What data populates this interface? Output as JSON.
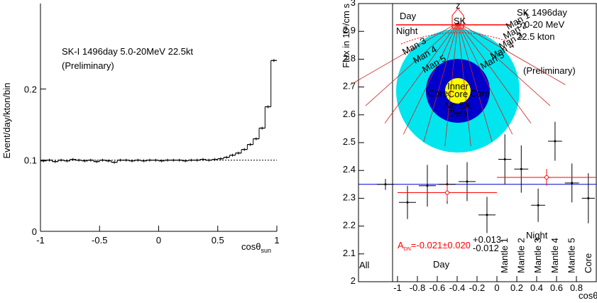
{
  "chart_data": [
    {
      "type": "histogram",
      "text": "SK-I 1496day  5.0-20MeV  22.5kt",
      "subtitle": "(Preliminary)",
      "y_label": "Event/day/kton/bin",
      "x_label": "cosθ",
      "x_label_sub": "sun",
      "bins": [
        -1,
        -0.95,
        -0.9,
        -0.85,
        -0.8,
        -0.75,
        -0.7,
        -0.65,
        -0.6,
        -0.55,
        -0.5,
        -0.45,
        -0.4,
        -0.35,
        -0.3,
        -0.25,
        -0.2,
        -0.15,
        -0.1,
        -0.05,
        0,
        0.05,
        0.1,
        0.15,
        0.2,
        0.25,
        0.3,
        0.35,
        0.4,
        0.45,
        0.5,
        0.55,
        0.6,
        0.65,
        0.7,
        0.75,
        0.8,
        0.85,
        0.9,
        0.95,
        1
      ],
      "values": [
        0.099,
        0.1,
        0.098,
        0.1,
        0.099,
        0.101,
        0.1,
        0.099,
        0.1,
        0.098,
        0.1,
        0.099,
        0.097,
        0.1,
        0.1,
        0.099,
        0.1,
        0.099,
        0.1,
        0.1,
        0.099,
        0.1,
        0.1,
        0.1,
        0.099,
        0.1,
        0.1,
        0.101,
        0.1,
        0.101,
        0.102,
        0.104,
        0.107,
        0.11,
        0.115,
        0.122,
        0.13,
        0.145,
        0.175,
        0.24
      ],
      "background": 0.1,
      "color": "#000000",
      "xlim": [
        -1,
        1
      ],
      "ylim": [
        0,
        0.32
      ],
      "xticks": [
        -1,
        -0.5,
        0,
        0.5,
        1
      ],
      "yticks": [
        0,
        0.1,
        0.2
      ]
    },
    {
      "type": "errorbar",
      "title_lines": [
        "SK 1496day",
        "5.0-20 MeV",
        "22.5 kton"
      ],
      "subtitle": "(Preliminary)",
      "y_label": [
        "Flux in 10",
        "6",
        "/cm s"
      ],
      "x_label": "cosθ",
      "x_label_sub": "z",
      "xlim": [
        -1,
        1
      ],
      "ylim": [
        2,
        3
      ],
      "xticks": [
        -1,
        -0.8,
        -0.6,
        -0.4,
        -0.2,
        0,
        0.2,
        0.4,
        0.6,
        0.8
      ],
      "yticks": [
        2,
        2.1,
        2.2,
        2.3,
        2.4,
        2.5,
        2.6,
        2.7,
        2.8,
        2.9,
        3
      ],
      "all": {
        "name": "All",
        "value": 2.35,
        "error": 0.02,
        "color": "#0000cc"
      },
      "day": {
        "name": "Day",
        "bins": [
          -1,
          -0.8,
          -0.6,
          -0.4,
          -0.2,
          0
        ],
        "values": [
          2.285,
          2.345,
          2.35,
          2.36,
          2.24
        ],
        "errors": [
          0.06,
          0.075,
          0.07,
          0.07,
          0.065
        ],
        "color": "#000000"
      },
      "night": {
        "name": "Night",
        "bins": [
          0,
          0.16,
          0.33,
          0.5,
          0.67,
          0.84,
          1
        ],
        "values": [
          2.44,
          2.405,
          2.275,
          2.505,
          2.355,
          2.3
        ],
        "errors": [
          0.09,
          0.085,
          0.06,
          0.07,
          0.07,
          0.09
        ],
        "bin_labels": [
          "Mantle 1",
          "Mantle 2",
          "Mantle 3",
          "Mantle 4",
          "Mantle 5",
          "Core"
        ],
        "color": "#000000"
      },
      "day_avg": {
        "range": [
          -1,
          0
        ],
        "x": -0.5,
        "value": 2.32,
        "error": 0.03,
        "color": "#ff0000"
      },
      "night_avg": {
        "range": [
          0,
          1
        ],
        "x": 0.5,
        "value": 2.375,
        "error": 0.03,
        "color": "#ff0000"
      },
      "asymmetry": [
        "A",
        "DN",
        "=-0.021±0.020",
        "+0.013",
        "-0.012"
      ],
      "diagram": {
        "z": "z",
        "sk": "SK",
        "day": "Day",
        "night": "Night",
        "right": [
          "Man 1",
          "Man 2",
          "Man 3",
          "Man 4",
          "Man 5"
        ],
        "left": [
          "Man 3",
          "Man 4",
          "Man 5"
        ],
        "core": [
          "Core",
          "Core"
        ],
        "inner": [
          "Inner",
          "Core"
        ],
        "nosk": [
          "No SK",
          "Dets"
        ]
      }
    }
  ]
}
